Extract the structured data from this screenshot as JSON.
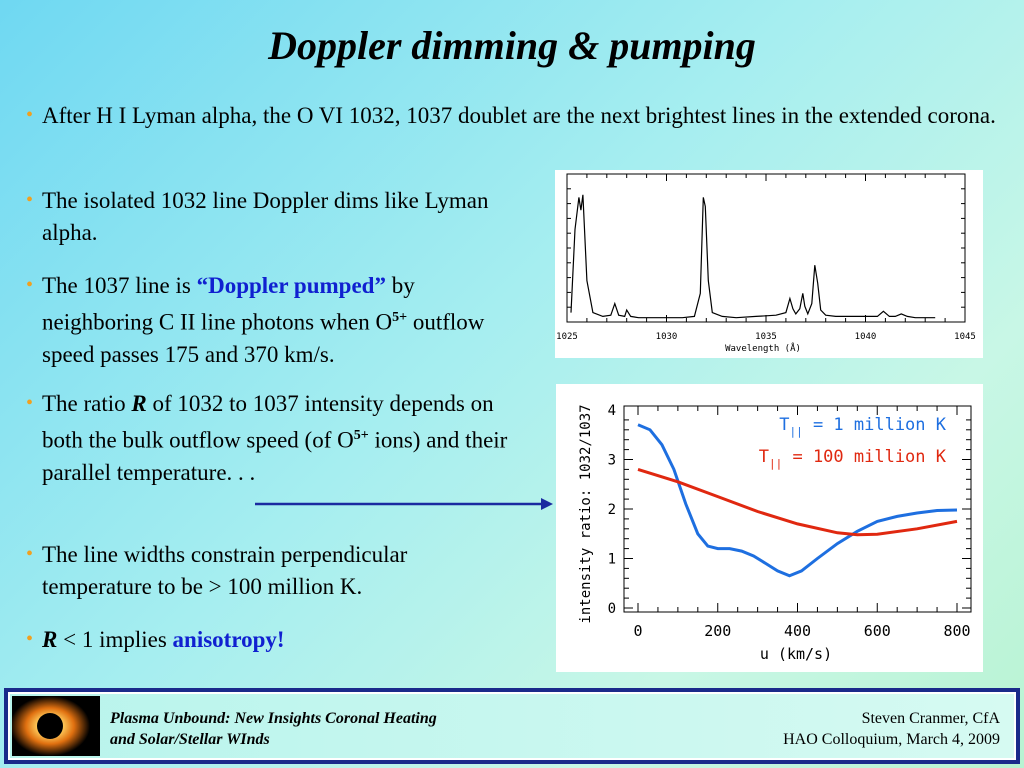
{
  "title": "Doppler dimming & pumping",
  "bullets": {
    "b1": "After H I Lyman alpha, the O VI 1032, 1037 doublet are the next brightest lines in the extended corona.",
    "b2": "The isolated 1032 line Doppler dims like Lyman alpha.",
    "b3_pre": "The 1037 line is ",
    "b3_em": "“Doppler pumped”",
    "b3_post": " by neighboring C II line photons when O",
    "b3_sup": "5+",
    "b3_end": " outflow speed passes 175 and 370 km/s.",
    "b4_pre": "The ratio ",
    "b4_R": "R",
    "b4_mid": " of 1032 to 1037 intensity depends on both the bulk outflow speed (of O",
    "b4_sup": "5+",
    "b4_end": " ions) and their parallel temperature. . .",
    "b5": "The line widths constrain perpendicular temperature to be > 100 million K.",
    "b6_R": "R",
    "b6_mid": " < 1 implies ",
    "b6_em": "anisotropy!"
  },
  "footer": {
    "left_line1": "Plasma Unbound:  New Insights Coronal Heating",
    "left_line2": "and Solar/Stellar WInds",
    "right_line1": "Steven Cranmer,  CfA",
    "right_line2": "HAO Colloquium, March 4, 2009"
  },
  "colors": {
    "accent_blue": "#1020d0",
    "bullet": "#f0a020",
    "footer_border": "#1a2a8a"
  },
  "chart_data": [
    {
      "type": "line",
      "title": "",
      "xlabel": "Wavelength (Å)",
      "ylabel": "",
      "xlim": [
        1025,
        1045
      ],
      "xticks": [
        "1025",
        "1030",
        "1035",
        "1040",
        "1045"
      ],
      "series": [
        {
          "x": [
            1025.2,
            1025.4,
            1025.6,
            1025.7,
            1025.8,
            1026.0,
            1026.3,
            1026.8,
            1027.2,
            1027.4,
            1027.6,
            1027.9,
            1028.0,
            1028.2,
            1028.6,
            1029.2,
            1030.0,
            1030.8,
            1031.4,
            1031.7,
            1031.85,
            1031.95,
            1032.1,
            1032.3,
            1032.8,
            1033.5,
            1034.5,
            1035.5,
            1036.0,
            1036.2,
            1036.35,
            1036.5,
            1036.7,
            1036.85,
            1036.95,
            1037.1,
            1037.3,
            1037.45,
            1037.6,
            1037.75,
            1038.0,
            1038.5,
            1039.0,
            1039.5,
            1040.0,
            1040.6,
            1040.9,
            1041.2,
            1041.5,
            1041.8,
            1042.1,
            1042.5,
            1043.0,
            1043.5
          ],
          "values": [
            0.05,
            0.7,
            0.95,
            0.85,
            0.97,
            0.3,
            0.05,
            0.02,
            0.03,
            0.12,
            0.03,
            0.02,
            0.07,
            0.02,
            0.01,
            0.01,
            0.01,
            0.01,
            0.02,
            0.2,
            0.95,
            0.88,
            0.3,
            0.05,
            0.02,
            0.01,
            0.02,
            0.03,
            0.05,
            0.16,
            0.08,
            0.04,
            0.08,
            0.2,
            0.1,
            0.04,
            0.12,
            0.42,
            0.28,
            0.07,
            0.03,
            0.02,
            0.02,
            0.02,
            0.02,
            0.02,
            0.06,
            0.02,
            0.02,
            0.04,
            0.02,
            0.01,
            0.01,
            0.01
          ]
        }
      ]
    },
    {
      "type": "line",
      "title": "",
      "xlabel": "u  (km/s)",
      "ylabel": "intensity ratio: 1032/1037",
      "xlim": [
        0,
        800
      ],
      "ylim": [
        0,
        4
      ],
      "xticks": [
        "0",
        "200",
        "400",
        "600",
        "800"
      ],
      "yticks": [
        "0",
        "1",
        "2",
        "3",
        "4"
      ],
      "series": [
        {
          "name": "T|| = 1 million K",
          "color": "#1e6fe0",
          "x": [
            0,
            30,
            60,
            90,
            120,
            150,
            175,
            200,
            230,
            260,
            290,
            320,
            350,
            380,
            410,
            450,
            500,
            550,
            600,
            650,
            700,
            750,
            800
          ],
          "values": [
            3.7,
            3.6,
            3.3,
            2.8,
            2.1,
            1.5,
            1.25,
            1.2,
            1.2,
            1.15,
            1.05,
            0.9,
            0.75,
            0.65,
            0.75,
            1.0,
            1.3,
            1.55,
            1.75,
            1.85,
            1.92,
            1.97,
            1.98
          ]
        },
        {
          "name": "T|| = 100 million K",
          "color": "#e02810",
          "x": [
            0,
            100,
            200,
            300,
            400,
            500,
            550,
            600,
            700,
            800
          ],
          "values": [
            2.8,
            2.55,
            2.25,
            1.95,
            1.7,
            1.52,
            1.48,
            1.49,
            1.6,
            1.75
          ]
        }
      ],
      "legend_labels": [
        {
          "T": "T",
          "sub": "||",
          "rest": " = 1 million K"
        },
        {
          "T": "T",
          "sub": "||",
          "rest": " = 100 million K"
        }
      ]
    }
  ]
}
